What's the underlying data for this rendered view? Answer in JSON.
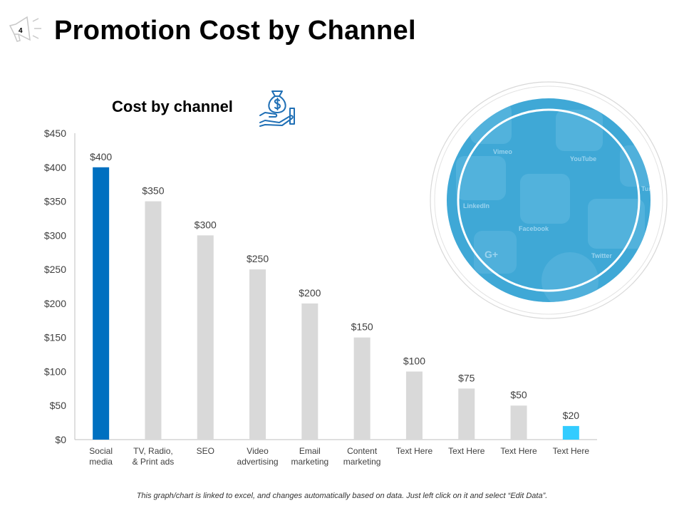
{
  "slide": {
    "number": "4",
    "title": "Promotion Cost by Channel"
  },
  "chart_heading": "Cost by channel",
  "icons": {
    "corner": "megaphone-icon",
    "heading": "money-bag-hand-icon",
    "image": "social-media-circle-image"
  },
  "image_labels": [
    "Vimeo",
    "YouTube",
    "Tumblr",
    "LinkedIn",
    "Facebook",
    "Twitter",
    "G+"
  ],
  "footnote": "This graph/chart is linked to excel, and changes automatically based on data. Just left click on it and select “Edit Data”.",
  "colors": {
    "highlight": "#0070C0",
    "accent": "#33CCFF",
    "default": "#D9D9D9",
    "circle": "#3FA8D6"
  },
  "chart_data": {
    "type": "bar",
    "categories": [
      [
        "Social",
        "media"
      ],
      [
        "TV, Radio,",
        "& Print ads"
      ],
      [
        "SEO"
      ],
      [
        "Video",
        "advertising"
      ],
      [
        "Email",
        "marketing"
      ],
      [
        "Content",
        "marketing"
      ],
      [
        "Text Here"
      ],
      [
        "Text Here"
      ],
      [
        "Text Here"
      ],
      [
        "Text Here"
      ]
    ],
    "values": [
      400,
      350,
      300,
      250,
      200,
      150,
      100,
      75,
      50,
      20
    ],
    "data_labels": [
      "$400",
      "$350",
      "$300",
      "$250",
      "$200",
      "$150",
      "$100",
      "$75",
      "$50",
      "$20"
    ],
    "bar_colors": [
      "#0070C0",
      "#D9D9D9",
      "#D9D9D9",
      "#D9D9D9",
      "#D9D9D9",
      "#D9D9D9",
      "#D9D9D9",
      "#D9D9D9",
      "#D9D9D9",
      "#33CCFF"
    ],
    "y_ticks": [
      "$0",
      "$50",
      "$100",
      "$150",
      "$200",
      "$250",
      "$300",
      "$350",
      "$400",
      "$450"
    ],
    "ylim": [
      0,
      450
    ],
    "grid": false,
    "legend": "none"
  }
}
